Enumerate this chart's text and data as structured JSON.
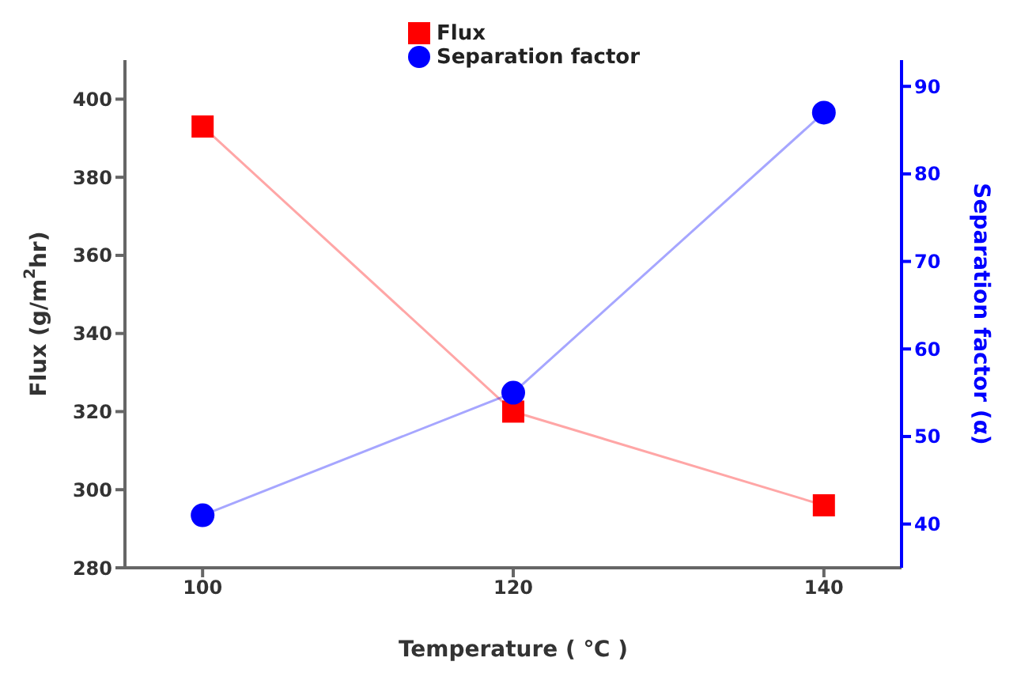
{
  "chart_data": {
    "type": "line",
    "xlabel": "Temperature ( ℃ )",
    "ylabel": "Flux (g/m$^{2}$hr)",
    "y2label": "Separation factor (α)",
    "x": [
      100,
      120,
      140
    ],
    "series": [
      {
        "name": "Flux",
        "color": "#ff0000",
        "values": [
          393,
          320,
          296
        ],
        "marker": "square"
      },
      {
        "name": "Separation factor",
        "color": "#0000ff",
        "values": [
          41,
          55,
          87
        ],
        "marker": "circle",
        "axis": "y2"
      }
    ],
    "xlim": [
      95,
      145
    ],
    "xticks": [
      100,
      120,
      140
    ],
    "ylim": [
      280,
      410
    ],
    "yticks": [
      280,
      300,
      320,
      340,
      360,
      380,
      400
    ],
    "y2lim": [
      35,
      93
    ],
    "y2ticks": [
      40,
      50,
      60,
      70,
      80,
      90
    ],
    "grid": false,
    "legend": "top"
  }
}
